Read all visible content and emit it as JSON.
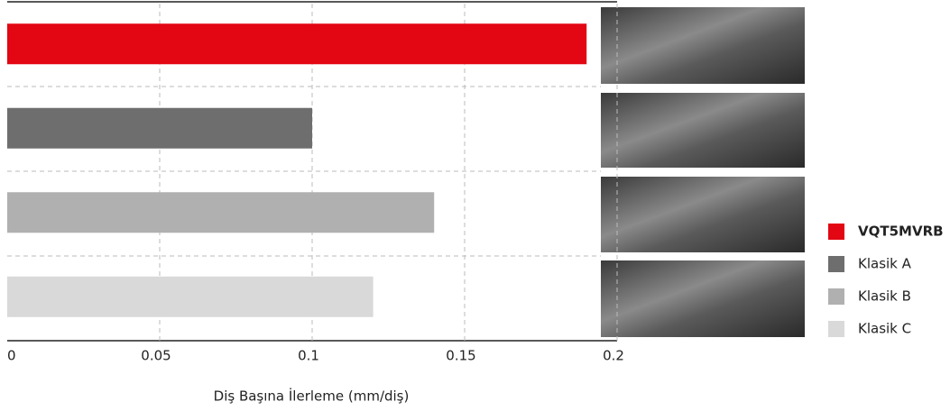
{
  "chart_data": {
    "type": "bar",
    "orientation": "horizontal",
    "x_label": "Diş Başına İlerleme (mm/diş)",
    "categories": [
      "VQT5MVRB",
      "Klasik A",
      "Klasik B",
      "Klasik C"
    ],
    "values": [
      0.19,
      0.1,
      0.14,
      0.12
    ],
    "colors": [
      "#e30613",
      "#6e6e6e",
      "#b0b0b0",
      "#d9d9d9"
    ],
    "xlim": [
      0,
      0.2
    ],
    "xticks": [
      0,
      0.05,
      0.1,
      0.15,
      0.2
    ],
    "grid": true
  }
}
